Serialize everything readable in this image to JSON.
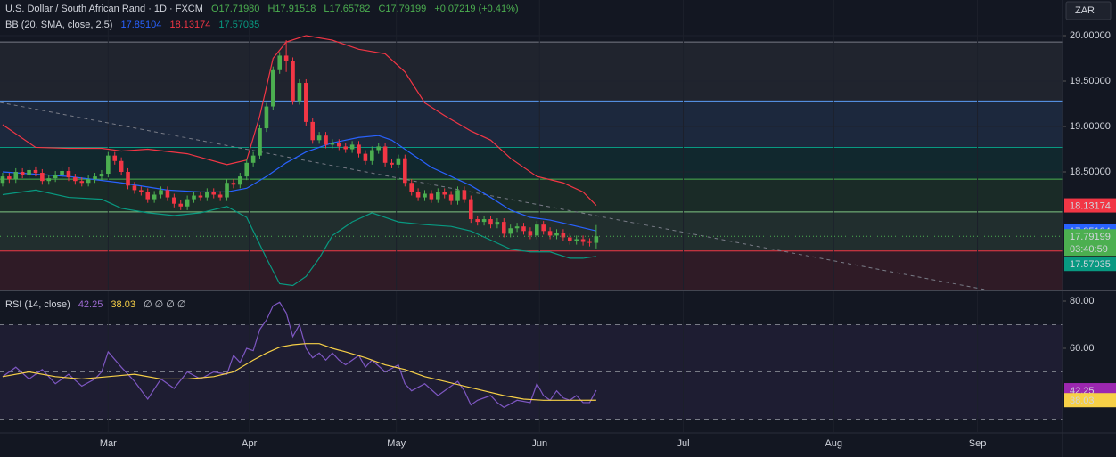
{
  "chart_data": [
    {
      "type": "candlestick",
      "title": "U.S. Dollar / South African Rand · 1D · FXCM",
      "ohlc_labels": [
        "O17.71980",
        "H17.91518",
        "L17.65782",
        "C17.79199"
      ],
      "change_label": "+0.07219 (+0.41%)",
      "currency": "ZAR",
      "countdown": "03:40:59",
      "up_color": "#4caf50",
      "down_color": "#f23645",
      "ohlc": {
        "open": [
          18.38,
          18.45,
          18.42,
          18.5,
          18.47,
          18.52,
          18.49,
          18.4,
          18.43,
          18.47,
          18.51,
          18.44,
          18.4,
          18.38,
          18.42,
          18.45,
          18.48,
          18.68,
          18.62,
          18.5,
          18.35,
          18.3,
          18.28,
          18.2,
          18.25,
          18.3,
          18.22,
          18.15,
          18.12,
          18.2,
          18.24,
          18.22,
          18.28,
          18.25,
          18.22,
          18.38,
          18.36,
          18.45,
          18.6,
          18.68,
          18.98,
          19.22,
          19.62,
          19.78,
          19.72,
          19.28,
          19.48,
          19.05,
          18.85,
          18.9,
          18.8,
          18.82,
          18.78,
          18.75,
          18.8,
          18.7,
          18.62,
          18.74,
          18.78,
          18.6,
          18.58,
          18.65,
          18.38,
          18.28,
          18.22,
          18.26,
          18.2,
          18.28,
          18.25,
          18.18,
          18.3,
          18.2,
          17.98,
          17.95,
          17.98,
          17.92,
          17.95,
          17.82,
          17.88,
          17.9,
          17.85,
          17.8,
          17.92,
          17.85,
          17.8,
          17.83,
          17.78,
          17.74,
          17.76,
          17.73,
          17.7198
        ],
        "high": [
          18.49,
          18.49,
          18.54,
          18.54,
          18.56,
          18.56,
          18.53,
          18.47,
          18.51,
          18.55,
          18.55,
          18.48,
          18.44,
          18.46,
          18.49,
          18.52,
          18.72,
          18.72,
          18.66,
          18.54,
          18.39,
          18.34,
          18.32,
          18.29,
          18.34,
          18.34,
          18.26,
          18.19,
          18.24,
          18.28,
          18.28,
          18.32,
          18.32,
          18.29,
          18.42,
          18.42,
          18.49,
          18.64,
          18.72,
          19.02,
          19.26,
          19.66,
          19.82,
          19.95,
          19.76,
          19.52,
          19.52,
          19.09,
          18.94,
          18.94,
          18.86,
          18.86,
          18.82,
          18.84,
          18.84,
          18.74,
          18.78,
          18.82,
          18.82,
          18.64,
          18.69,
          18.69,
          18.42,
          18.32,
          18.3,
          18.3,
          18.32,
          18.32,
          18.29,
          18.34,
          18.34,
          18.24,
          18.02,
          18.02,
          18.02,
          17.99,
          17.99,
          17.92,
          17.94,
          17.94,
          17.89,
          17.96,
          17.96,
          17.89,
          17.87,
          17.87,
          17.82,
          17.8,
          17.8,
          17.77,
          17.91518
        ],
        "low": [
          18.34,
          18.38,
          18.38,
          18.43,
          18.43,
          18.45,
          18.36,
          18.36,
          18.39,
          18.43,
          18.4,
          18.36,
          18.34,
          18.34,
          18.38,
          18.41,
          18.44,
          18.58,
          18.46,
          18.31,
          18.26,
          18.24,
          18.16,
          18.16,
          18.21,
          18.18,
          18.11,
          18.08,
          18.08,
          18.16,
          18.18,
          18.18,
          18.21,
          18.18,
          18.18,
          18.32,
          18.32,
          18.41,
          18.56,
          18.64,
          18.94,
          19.18,
          19.58,
          19.6,
          19.24,
          19.24,
          19.01,
          18.81,
          18.81,
          18.76,
          18.76,
          18.74,
          18.71,
          18.71,
          18.66,
          18.58,
          18.58,
          18.7,
          18.56,
          18.54,
          18.54,
          18.34,
          18.24,
          18.18,
          18.18,
          18.16,
          18.16,
          18.21,
          18.14,
          18.14,
          18.16,
          17.94,
          17.91,
          17.91,
          17.88,
          17.88,
          17.78,
          17.78,
          17.84,
          17.81,
          17.76,
          17.76,
          17.81,
          17.76,
          17.76,
          17.74,
          17.7,
          17.7,
          17.69,
          17.68,
          17.65782
        ],
        "close": [
          18.45,
          18.42,
          18.5,
          18.47,
          18.52,
          18.49,
          18.4,
          18.43,
          18.47,
          18.51,
          18.44,
          18.4,
          18.38,
          18.42,
          18.45,
          18.48,
          18.68,
          18.62,
          18.5,
          18.35,
          18.3,
          18.28,
          18.2,
          18.25,
          18.3,
          18.22,
          18.15,
          18.12,
          18.2,
          18.24,
          18.22,
          18.28,
          18.25,
          18.22,
          18.38,
          18.36,
          18.45,
          18.6,
          18.68,
          18.98,
          19.22,
          19.62,
          19.78,
          19.72,
          19.28,
          19.48,
          19.05,
          18.85,
          18.9,
          18.8,
          18.82,
          18.78,
          18.75,
          18.8,
          18.7,
          18.62,
          18.74,
          18.78,
          18.6,
          18.58,
          18.65,
          18.38,
          18.28,
          18.22,
          18.26,
          18.2,
          18.28,
          18.25,
          18.18,
          18.3,
          18.2,
          17.98,
          17.95,
          17.98,
          17.92,
          17.95,
          17.82,
          17.88,
          17.9,
          17.85,
          17.8,
          17.92,
          17.85,
          17.8,
          17.83,
          17.78,
          17.74,
          17.76,
          17.73,
          17.72,
          17.79199
        ]
      },
      "indicator": "BB (20, SMA, close, 2.5)",
      "bands": [
        {
          "color": "#2962ff",
          "x": [
            0,
            10,
            18,
            25,
            30,
            34,
            37,
            40,
            43,
            46,
            50,
            54,
            57,
            59,
            62,
            65,
            68,
            71,
            74,
            77,
            80,
            83,
            86,
            90
          ],
          "values": [
            18.5,
            18.45,
            18.38,
            18.3,
            18.28,
            18.28,
            18.32,
            18.45,
            18.6,
            18.72,
            18.82,
            18.88,
            18.9,
            18.85,
            18.7,
            18.55,
            18.45,
            18.35,
            18.22,
            18.08,
            18.0,
            17.97,
            17.92,
            17.85104
          ]
        },
        {
          "color": "#f23645",
          "x": [
            0,
            5,
            10,
            15,
            18,
            22,
            28,
            34,
            37,
            39,
            41,
            43,
            46,
            50,
            54,
            58,
            61,
            64,
            67,
            71,
            74,
            77,
            81,
            85,
            88,
            90
          ],
          "values": [
            19.02,
            18.77,
            18.76,
            18.76,
            18.73,
            18.75,
            18.7,
            18.58,
            18.63,
            19.12,
            19.75,
            19.93,
            20.0,
            19.95,
            19.85,
            19.8,
            19.6,
            19.26,
            19.12,
            18.95,
            18.85,
            18.65,
            18.45,
            18.38,
            18.28,
            18.13174
          ]
        },
        {
          "color": "#089981",
          "x": [
            0,
            5,
            10,
            15,
            18,
            22,
            26,
            30,
            34,
            37,
            38,
            40,
            42,
            44,
            46,
            48,
            50,
            53,
            56,
            58,
            60,
            64,
            68,
            71,
            74,
            77,
            80,
            83,
            86,
            88,
            90
          ],
          "values": [
            18.25,
            18.3,
            18.22,
            18.2,
            18.1,
            18.05,
            18.02,
            18.05,
            18.12,
            18.0,
            17.85,
            17.55,
            17.27,
            17.25,
            17.35,
            17.55,
            17.8,
            17.95,
            18.05,
            18.0,
            17.95,
            17.92,
            17.9,
            17.85,
            17.75,
            17.65,
            17.62,
            17.62,
            17.55,
            17.55,
            17.57035
          ]
        }
      ],
      "trendline": {
        "color": "#787b86",
        "x": [
          -0.4,
          148.9
        ],
        "values": [
          19.265,
          17.206
        ]
      },
      "levels": [
        {
          "value": 19.93,
          "color": "#787b86"
        },
        {
          "value": 19.28,
          "color": "#5b9cf6"
        },
        {
          "value": 18.77,
          "color": "#089981"
        },
        {
          "value": 18.42,
          "color": "#4caf50"
        },
        {
          "value": 18.06,
          "color": "#81c784"
        },
        {
          "value": 17.63,
          "color": "#f23645"
        }
      ],
      "xlim": [
        -0.4,
        160.7
      ],
      "ylim": [
        17.206,
        20.392
      ],
      "yticks": [
        {
          "value": 20,
          "label": "20.00000"
        },
        {
          "value": 19.5,
          "label": "19.50000"
        },
        {
          "value": 19,
          "label": "19.00000"
        },
        {
          "value": 18.5,
          "label": "18.50000"
        }
      ]
    },
    {
      "type": "line",
      "title": "RSI (14, close)",
      "extras": "∅ ∅ ∅ ∅",
      "series": [
        {
          "color": "#7e57c2",
          "x": [
            0,
            2,
            4,
            6,
            8,
            10,
            12,
            14,
            15,
            16,
            18,
            20,
            22,
            24,
            26,
            28,
            30,
            32,
            34,
            35,
            36,
            37,
            38,
            39,
            40,
            41,
            42,
            43,
            44,
            45,
            46,
            47,
            48,
            49,
            50,
            51,
            52,
            54,
            55,
            56,
            58,
            60,
            61,
            62,
            64,
            66,
            68,
            69,
            70,
            71,
            72,
            74,
            75,
            76,
            78,
            80,
            81,
            82,
            83,
            84,
            85,
            86,
            87,
            88,
            89,
            90
          ],
          "values": [
            48,
            52,
            47,
            51,
            45,
            49,
            44,
            47,
            50,
            58.5,
            52,
            46,
            38.5,
            47,
            43,
            50,
            47,
            50,
            49,
            57,
            54,
            60,
            59,
            68,
            72,
            78,
            79.5,
            75,
            65,
            70,
            60,
            56,
            58,
            55,
            58,
            55,
            53,
            57,
            52,
            55,
            50,
            53,
            45,
            42,
            45,
            40,
            44,
            46,
            42,
            36,
            38,
            40,
            37,
            35,
            38,
            37,
            45,
            40,
            38,
            42,
            39,
            38,
            40,
            37,
            37,
            42.25
          ]
        },
        {
          "color": "#f7d047",
          "x": [
            0,
            4,
            8,
            12,
            16,
            20,
            24,
            28,
            32,
            35,
            38,
            40,
            42,
            44,
            46,
            48,
            50,
            52,
            55,
            58,
            61,
            64,
            67,
            70,
            73,
            76,
            79,
            82,
            86,
            90
          ],
          "values": [
            48,
            50,
            48,
            47,
            48,
            49,
            47,
            47,
            48,
            50,
            55,
            58,
            60.5,
            61.5,
            62,
            62,
            60,
            58.5,
            56,
            53,
            51,
            48,
            46,
            44,
            42,
            40,
            38.5,
            38,
            38,
            38.03
          ]
        }
      ],
      "hlines": [
        30,
        50,
        70
      ],
      "xlim": [
        -0.4,
        160.7
      ],
      "ylim": [
        24.53,
        84.15
      ],
      "yticks": [
        {
          "value": 80,
          "label": "80.00"
        },
        {
          "value": 60,
          "label": "60.00"
        }
      ],
      "xticks": [
        {
          "value": 16,
          "label": "Mar"
        },
        {
          "value": 37.4,
          "label": "Apr"
        },
        {
          "value": 59.7,
          "label": "May"
        },
        {
          "value": 81.4,
          "label": "Jun"
        },
        {
          "value": 103.2,
          "label": "Jul"
        },
        {
          "value": 126,
          "label": "Aug"
        },
        {
          "value": 147.8,
          "label": "Sep"
        }
      ]
    }
  ]
}
